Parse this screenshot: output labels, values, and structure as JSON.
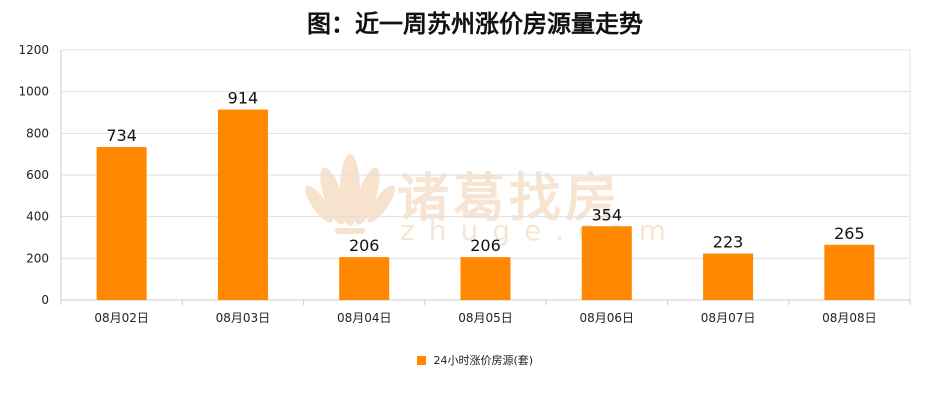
{
  "title": "图：近一周苏州涨价房源量走势",
  "watermark": {
    "main": "诸葛找房",
    "sub": "zhuge.com"
  },
  "colors": {
    "bar": "#ff8800",
    "grid": "#e0e0e0",
    "axis": "#cccccc",
    "watermark": "#f3cfae"
  },
  "chart_data": {
    "type": "bar",
    "title": "图：近一周苏州涨价房源量走势",
    "xlabel": "",
    "ylabel": "",
    "categories": [
      "08月02日",
      "08月03日",
      "08月04日",
      "08月05日",
      "08月06日",
      "08月07日",
      "08月08日"
    ],
    "series": [
      {
        "name": "24小时涨价房源(套)",
        "values": [
          734,
          914,
          206,
          206,
          354,
          223,
          265
        ]
      }
    ],
    "ylim": [
      0,
      1200
    ],
    "yticks": [
      0,
      200,
      400,
      600,
      800,
      1000,
      1200
    ],
    "grid": true,
    "legend_position": "bottom-center",
    "data_labels": true
  }
}
